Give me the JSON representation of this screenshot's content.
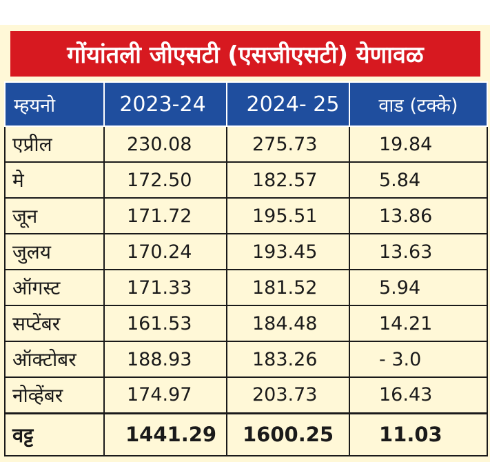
{
  "title": "गोंयांतली जीएसटी (एसजीएसटी) येणावळ",
  "colors": {
    "title_bg": "#d71920",
    "header_bg": "#1f4e9e",
    "panel_bg": "#fff8d7"
  },
  "table": {
    "headers": [
      "म्हयनो",
      "2023-24",
      "2024- 25",
      "वाड (टक्के)"
    ],
    "rows": [
      [
        "एप्रील",
        "230.08",
        "275.73",
        "19.84"
      ],
      [
        "मे",
        "172.50",
        "182.57",
        "5.84"
      ],
      [
        "जून",
        "171.72",
        "195.51",
        "13.86"
      ],
      [
        "जुलय",
        "170.24",
        "193.45",
        "13.63"
      ],
      [
        "ऑगस्ट",
        "171.33",
        "181.52",
        "5.94"
      ],
      [
        "सप्टेंबर",
        "161.53",
        "184.48",
        "14.21"
      ],
      [
        "ऑक्टोबर",
        "188.93",
        "183.26",
        "- 3.0"
      ],
      [
        "नोव्हेंबर",
        "174.97",
        "203.73",
        "16.43"
      ]
    ],
    "total": [
      "वट्ट",
      "1441.29",
      "1600.25",
      "11.03"
    ]
  }
}
